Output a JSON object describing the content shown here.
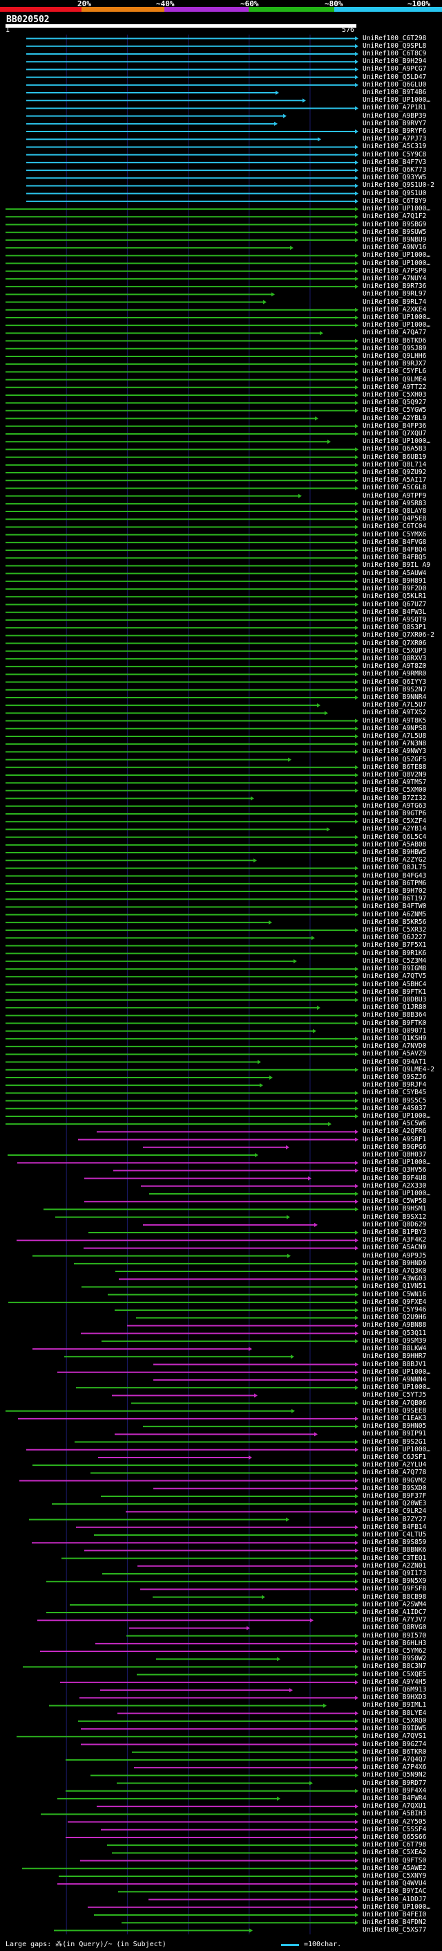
{
  "query": {
    "id": "BB020502",
    "start": "1",
    "end": "576"
  },
  "identity_legend": {
    "ticks": [
      "20%",
      "~40%",
      "~60%",
      "~80%",
      "~100%"
    ],
    "colors": [
      "#e8111e",
      "#e87f12",
      "#a92ed6",
      "#22b516",
      "#28c6f0"
    ]
  },
  "colors": {
    "cyan": "#2bc3ea",
    "green": "#2cb51e",
    "magenta": "#c62ac3",
    "grid": "#1a1a6a",
    "background": "#000000"
  },
  "footer": {
    "left": "Large gaps: ⁂(in Query)/~ (in Subject)",
    "right": "=100char."
  },
  "hits": [
    "UniRef100_C6T298",
    "UniRef100_Q9SPL8",
    "UniRef100_C6T8C9",
    "UniRef100_B9H294",
    "UniRef100_A9PCG7",
    "UniRef100_Q5LD47",
    "UniRef100_Q6GLU0",
    "UniRef100_B9T4B6",
    "UniRef100_UP1000…",
    "UniRef100_A7P1R1",
    "UniRef100_A9BP39",
    "UniRef100_B9RVY7",
    "UniRef100_B9RYF6",
    "UniRef100_A7PJ73",
    "UniRef100_A5C319",
    "UniRef100_C5Y9C8",
    "UniRef100_B4F7V3",
    "UniRef100_Q6K773",
    "UniRef100_Q93YW5",
    "UniRef100_Q9S1U0-2",
    "UniRef100_Q9S1U0",
    "UniRef100_C6T8Y9",
    "UniRef100_UP1000…",
    "UniRef100_A7Q1F2",
    "UniRef100_B9SBG9",
    "UniRef100_B9SUW5",
    "UniRef100_B9NBU9",
    "UniRef100_A9NV16",
    "UniRef100_UP1000…",
    "UniRef100_UP1000…",
    "UniRef100_A7PSP0",
    "UniRef100_A7NUY4",
    "UniRef100_B9R736",
    "UniRef100_B9RL97",
    "UniRef100_B9RL74",
    "UniRef100_A2XKE4",
    "UniRef100_UP1000…",
    "UniRef100_UP1000…",
    "UniRef100_A7QA77",
    "UniRef100_B6TKD6",
    "UniRef100_Q9SJ89",
    "UniRef100_Q9LHH6",
    "UniRef100_B9RJX7",
    "UniRef100_C5YFL6",
    "UniRef100_Q9LME4",
    "UniRef100_A9TT22",
    "UniRef100_C5XH03",
    "UniRef100_Q5Q927",
    "UniRef100_C5YGW5",
    "UniRef100_A2YBL9",
    "UniRef100_B4FP36",
    "UniRef100_Q7XQU7",
    "UniRef100_UP1000…",
    "UniRef100_Q6A5B3",
    "UniRef100_B6UB19",
    "UniRef100_Q8L714",
    "UniRef100_Q9ZU92",
    "UniRef100_A5AI17",
    "UniRef100_A5C6L8",
    "UniRef100_A9TPF9",
    "UniRef100_A9SR83",
    "UniRef100_Q8LAY8",
    "UniRef100_Q4P5E8",
    "UniRef100_C6TC04",
    "UniRef100_C5YMX6",
    "UniRef100_B4FVG8",
    "UniRef100_B4FBQ4",
    "UniRef100_B4FBQ5",
    "UniRef100_B9IL A9",
    "UniRef100_A5AUW4",
    "UniRef100_B9H891",
    "UniRef100_B9F2D0",
    "UniRef100_Q5KLR1",
    "UniRef100_Q67UZ7",
    "UniRef100_B4FW3L",
    "UniRef100_A9SQT9",
    "UniRef100_Q8S3P1",
    "UniRef100_Q7XR06-2",
    "UniRef100_Q7XR06",
    "UniRef100_C5XUP3",
    "UniRef100_Q8RXV3",
    "UniRef100_A9T8Z0",
    "UniRef100_A9RMR0",
    "UniRef100_Q6IYY3",
    "UniRef100_B9S2N7",
    "UniRef100_B9NNR4",
    "UniRef100_A7L5U7",
    "UniRef100_A9TXS2",
    "UniRef100_A9T8K5",
    "UniRef100_A9NPS8",
    "UniRef100_A7L5U8",
    "UniRef100_A7N3N8",
    "UniRef100_A9NWY3",
    "UniRef100_Q5ZGF5",
    "UniRef100_B6TE88",
    "UniRef100_Q8V2N9",
    "UniRef100_A9TMS7",
    "UniRef100_C5XM00",
    "UniRef100_B7ZI32",
    "UniRef100_A9TG63",
    "UniRef100_B9GTP6",
    "UniRef100_C5XZF4",
    "UniRef100_A2YB14",
    "UniRef100_Q6L5C4",
    "UniRef100_A5AB08",
    "UniRef100_B9HBW5",
    "UniRef100_A2ZYG2",
    "UniRef100_Q0JL75",
    "UniRef100_B4FG43",
    "UniRef100_B6TPM6",
    "UniRef100_B9H702",
    "UniRef100_B6T197",
    "UniRef100_B4FTW0",
    "UniRef100_A6ZNM5",
    "UniRef100_B5KR56",
    "UniRef100_C5XR32",
    "UniRef100_Q6J227",
    "UniRef100_B7F5X1",
    "UniRef100_B9R1K6",
    "UniRef100_C5Z3M4",
    "UniRef100_B9IGM8",
    "UniRef100_A7QTV5",
    "UniRef100_A5BHC4",
    "UniRef100_B9FTK1",
    "UniRef100_Q0DBU3",
    "UniRef100_Q1JR80",
    "UniRef100_B8B364",
    "UniRef100_B9FTK0",
    "UniRef100_Q09071",
    "UniRef100_Q1KSH9",
    "UniRef100_A7NVD0",
    "UniRef100_A5AVZ9",
    "UniRef100_Q94AT1",
    "UniRef100_Q9LME4-2",
    "UniRef100_Q9SZJ6",
    "UniRef100_B9RJF4",
    "UniRef100_C5YB45",
    "UniRef100_B9S5C5",
    "UniRef100_A4S037",
    "UniRef100_UP1000…",
    "UniRef100_A5C5W6",
    "UniRef100_A2QFR6",
    "UniRef100_A9SRF1",
    "UniRef100_B9GPG6",
    "UniRef100_Q8H037",
    "UniRef100_UP1000…",
    "UniRef100_Q3HV56",
    "UniRef100_B9F4U8",
    "UniRef100_A2X330",
    "UniRef100_UP1000…",
    "UniRef100_C5WP58",
    "UniRef100_B9HSM1",
    "UniRef100_B9SX12",
    "UniRef100_Q0D629",
    "UniRef100_B1PBY3",
    "UniRef100_A3F4K2",
    "UniRef100_A5ACN9",
    "UniRef100_A9P9J5",
    "UniRef100_B9HND9",
    "UniRef100_A7Q3K0",
    "UniRef100_A3WG03",
    "UniRef100_Q1VN51",
    "UniRef100_C5WN16",
    "UniRef100_Q9FXE4",
    "UniRef100_C5Y946",
    "UniRef100_Q2U9H6",
    "UniRef100_A9BN88",
    "UniRef100_Q53Q11",
    "UniRef100_Q9SM39",
    "UniRef100_B8LKW4",
    "UniRef100_B9HHR7",
    "UniRef100_B8BJV1",
    "UniRef100_UP1000…",
    "UniRef100_A9NNN4",
    "UniRef100_UP1000…",
    "UniRef100_C5YTJ5",
    "UniRef100_A7QB06",
    "UniRef100_Q9SEE8",
    "UniRef100_C1EAK3",
    "UniRef100_B9HN05",
    "UniRef100_B9IP91",
    "UniRef100_B9S2G1",
    "UniRef100_UP1000…",
    "UniRef100_C6JSF1",
    "UniRef100_A2YLU4",
    "UniRef100_A7Q778",
    "UniRef100_B9GVM2",
    "UniRef100_B9SXD0",
    "UniRef100_B9F37F",
    "UniRef100_Q20WE3",
    "UniRef100_C9LR24",
    "UniRef100_B7ZY27",
    "UniRef100_B4FB14",
    "UniRef100_C4LTU5",
    "UniRef100_B9S859",
    "UniRef100_B8BNK6",
    "UniRef100_C3TEQ1",
    "UniRef100_A2ZN01",
    "UniRef100_Q9I173",
    "UniRef100_B9N5X9",
    "UniRef100_Q9FSF8",
    "UniRef100_B8CB98",
    "UniRef100_A2SWM4",
    "UniRef100_A1IDC7",
    "UniRef100_A7YJV7",
    "UniRef100_Q8RVG0",
    "UniRef100_B9I570",
    "UniRef100_B6HLH3",
    "UniRef100_C5YM62",
    "UniRef100_B9S0W2",
    "UniRef100_B8C3N7",
    "UniRef100_C5XQE5",
    "UniRef100_A9Y4H5",
    "UniRef100_Q6M913",
    "UniRef100_B9HXD3",
    "UniRef100_B9IML1",
    "UniRef100_B8LYE4",
    "UniRef100_C5XRQ0",
    "UniRef100_B9IDW5",
    "UniRef100_A7QVS1",
    "UniRef100_B9GZ74",
    "UniRef100_B6TKR0",
    "UniRef100_A7Q4Q7",
    "UniRef100_A7P4X6",
    "UniRef100_Q5N9N2",
    "UniRef100_B9RD77",
    "UniRef100_B9F4X4",
    "UniRef100_B4FWR4",
    "UniRef100_A7QXU1",
    "UniRef100_A5BIH3",
    "UniRef100_A2Y505",
    "UniRef100_C5SSF4",
    "UniRef100_Q65S66",
    "UniRef100_C6T798",
    "UniRef100_C5XEA2",
    "UniRef100_Q9FTS0",
    "UniRef100_A5AWE2",
    "UniRef100_C5XNY9",
    "UniRef100_Q4WVU4",
    "UniRef100_B9YIAC",
    "UniRef100_A1DDJ7",
    "UniRef100_UP1000…",
    "UniRef100_B4FEI0",
    "UniRef100_B4FDN2",
    "UniRef100_C5XS77"
  ]
}
